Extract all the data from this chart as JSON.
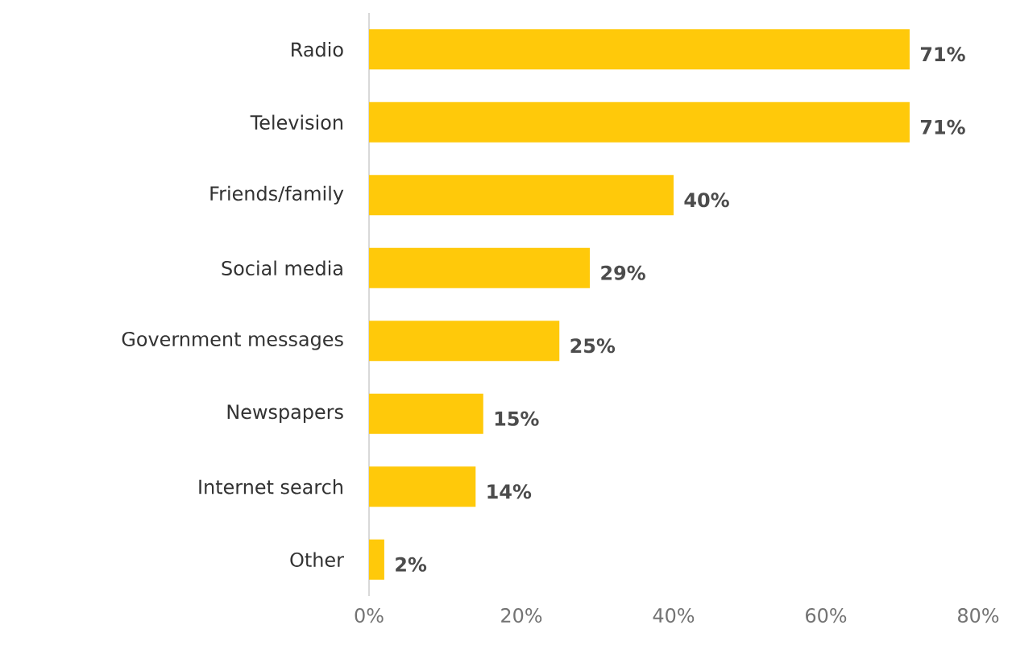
{
  "chart_data": {
    "type": "bar",
    "orientation": "horizontal",
    "categories": [
      "Radio",
      "Television",
      "Friends/family",
      "Social media",
      "Government messages",
      "Newspapers",
      "Internet search",
      "Other"
    ],
    "values": [
      71,
      71,
      40,
      29,
      25,
      15,
      14,
      2
    ],
    "value_labels": [
      "71%",
      "71%",
      "40%",
      "29%",
      "25%",
      "15%",
      "14%",
      "2%"
    ],
    "color": "#ffc90a",
    "xlim": [
      0,
      80
    ],
    "xticks": [
      {
        "value": 0,
        "label": "0%"
      },
      {
        "value": 20,
        "label": "20%"
      },
      {
        "value": 40,
        "label": "40%"
      },
      {
        "value": 60,
        "label": "60%"
      },
      {
        "value": 80,
        "label": "80%"
      }
    ],
    "grid": false
  }
}
